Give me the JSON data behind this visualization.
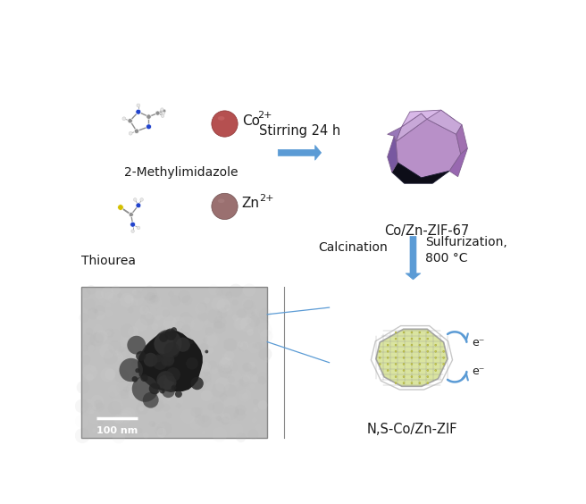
{
  "bg_color": "#ffffff",
  "arrow_color": "#5b9bd5",
  "text_color": "#1a1a1a",
  "labels": {
    "methylimidazole": "2-Methylimidazole",
    "thiourea": "Thiourea",
    "co_ion": "Co",
    "co_superscript": "2+",
    "zn_ion": "Zn",
    "zn_superscript": "2+",
    "stirring": "Stirring 24 h",
    "zif67": "Co/Zn-ZIF-67",
    "calcination": "Calcination",
    "sulfurization": "Sulfurization,\n800 °C",
    "nszif": "N,S-Co/Zn-ZIF",
    "scalebar": "100 nm",
    "electron1": "e⁻",
    "electron2": "e⁻"
  },
  "co_sphere_color": "#b55050",
  "zn_sphere_color": "#9a7070",
  "zif67_top_color": "#c8a8d8",
  "zif67_mid_color": "#b090c8",
  "zif67_right_color": "#a878b8",
  "zif67_dark_color": "#0d0d18",
  "nszif_fill_color": "#d4e090",
  "nszif_frame_color": "#999999",
  "tem_bg_light": "#c8c8c8",
  "tem_bg_dark": "#b0b0b0"
}
